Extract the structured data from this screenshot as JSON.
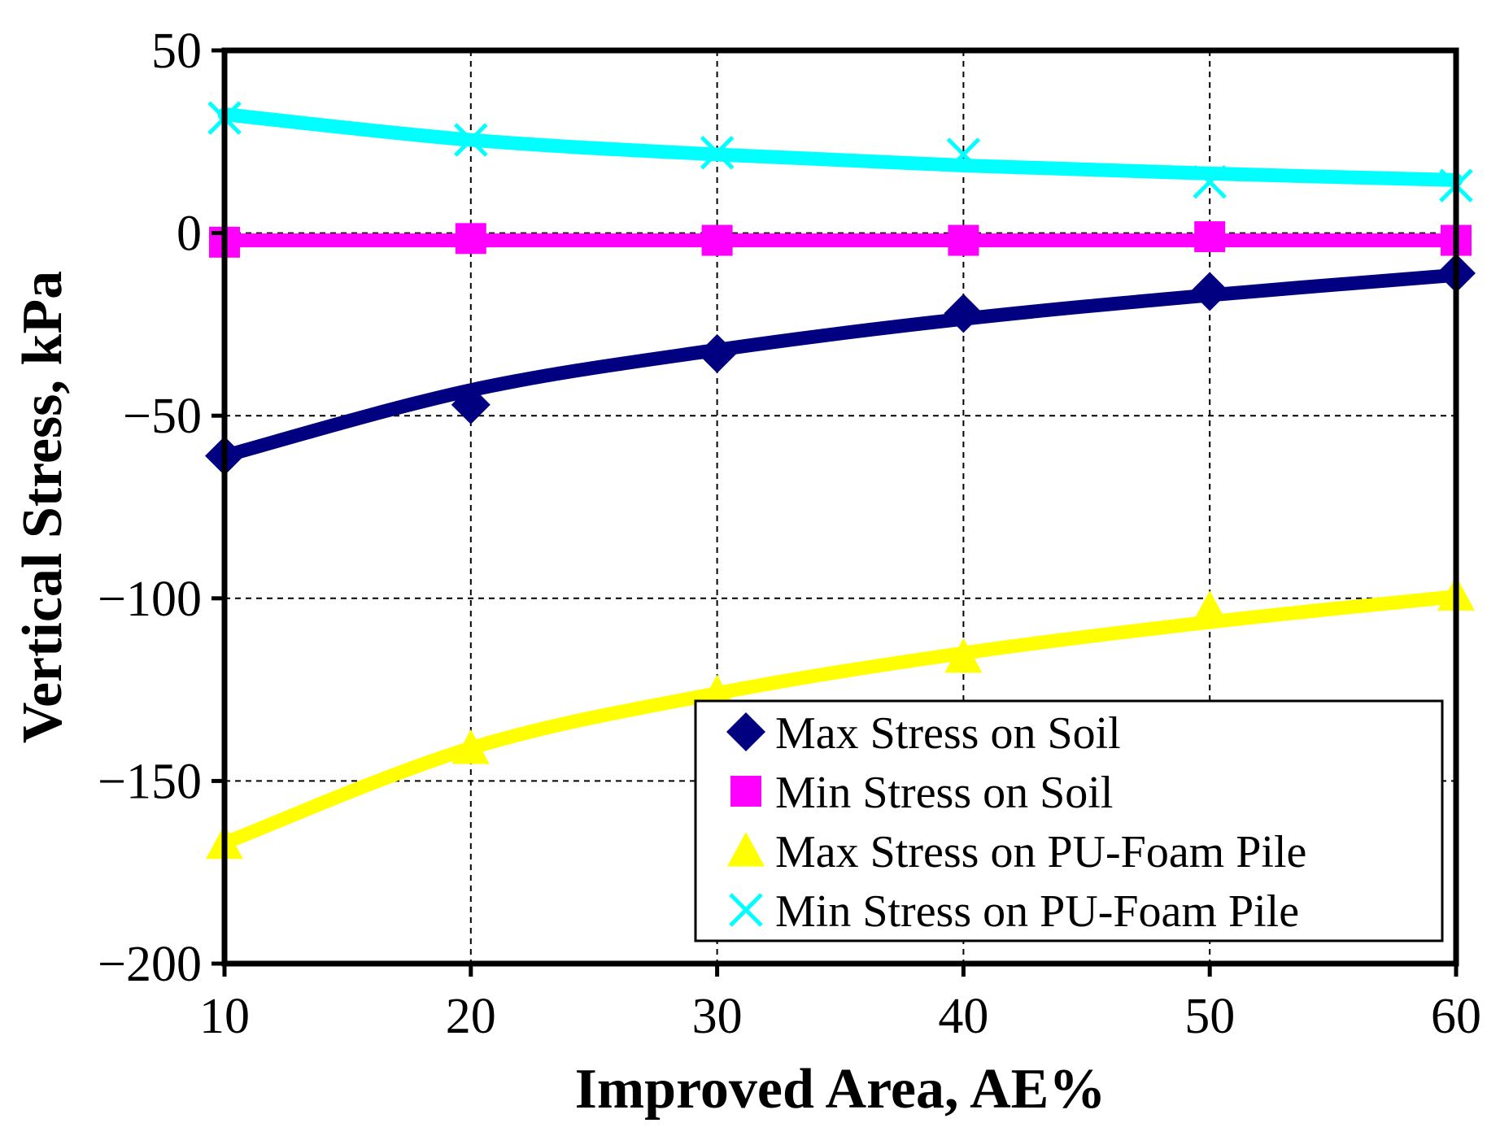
{
  "chart_data": {
    "type": "scatter",
    "title": "",
    "xlabel": "Improved Area, AE%",
    "ylabel": "Vertical Stress, kPa",
    "xlim": [
      10,
      60
    ],
    "ylim": [
      -200,
      50
    ],
    "xticks": [
      10,
      20,
      30,
      40,
      50,
      60
    ],
    "yticks": [
      50,
      0,
      -50,
      -100,
      -150,
      -200
    ],
    "ytick_labels": [
      "50",
      "0",
      "−50",
      "−100",
      "−150",
      "−200"
    ],
    "grid": true,
    "legend_position": "bottom-right",
    "series": [
      {
        "name": "Max Stress on Soil",
        "marker": "diamond",
        "color": "#000080",
        "x": [
          10,
          20,
          30,
          40,
          50,
          60
        ],
        "y": [
          -61,
          -47,
          -33,
          -22,
          -16,
          -11
        ],
        "trend": [
          -61,
          -43,
          -32,
          -23.5,
          -17,
          -11.5
        ]
      },
      {
        "name": "Min Stress on Soil",
        "marker": "square",
        "color": "#FF00FF",
        "x": [
          10,
          20,
          30,
          40,
          50,
          60
        ],
        "y": [
          -2.5,
          -1.5,
          -2,
          -2,
          -1,
          -2
        ],
        "trend": [
          -2,
          -2,
          -2,
          -2,
          -2,
          -2
        ]
      },
      {
        "name": "Max Stress on PU-Foam Pile",
        "marker": "triangle",
        "color": "#FFFF00",
        "x": [
          10,
          20,
          30,
          40,
          50,
          60
        ],
        "y": [
          -167,
          -141,
          -126,
          -116,
          -103,
          -99
        ],
        "trend": [
          -167,
          -141,
          -126,
          -115,
          -106.5,
          -99.5
        ]
      },
      {
        "name": "Min Stress on PU-Foam Pile",
        "marker": "x",
        "color": "#00FFFF",
        "x": [
          10,
          20,
          30,
          40,
          50,
          60
        ],
        "y": [
          31.5,
          25.5,
          22,
          21.5,
          14,
          13
        ],
        "trend": [
          32.5,
          25.5,
          21.5,
          18.5,
          16.3,
          14.5
        ]
      }
    ]
  }
}
